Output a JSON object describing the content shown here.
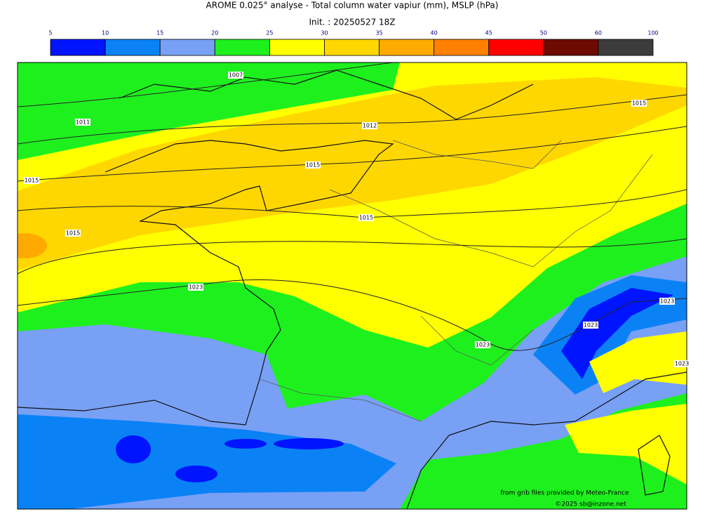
{
  "header": {
    "title": "AROME 0.025° analyse - Total column water vapiur (mm), MSLP (hPa)",
    "subtitle": "Init. : 20250527 18Z"
  },
  "colorbar": {
    "ticks": [
      5,
      10,
      15,
      20,
      25,
      30,
      35,
      40,
      45,
      50,
      60,
      100
    ],
    "colors": [
      "#0014ff",
      "#0a82f5",
      "#78a0f5",
      "#1ef01e",
      "#ffff00",
      "#ffd700",
      "#ffaa00",
      "#ff8000",
      "#ff0000",
      "#6e0a00",
      "#3c3c3c"
    ]
  },
  "isobar_labels": [
    "1007",
    "1011",
    "1012",
    "1015",
    "1015",
    "1015",
    "1015",
    "1015",
    "1023",
    "1023",
    "1023",
    "1023",
    "1023"
  ],
  "credits": [
    "from grib files provided by Meteo-France",
    "©2025 sb@inzone.net"
  ]
}
